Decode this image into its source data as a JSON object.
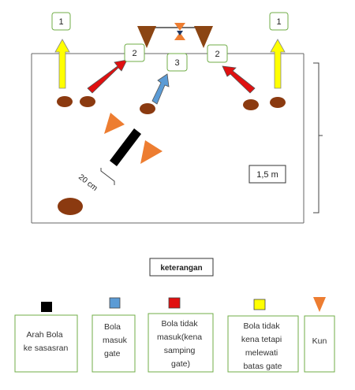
{
  "field": {
    "gate_labels": [
      "1",
      "2",
      "3",
      "2",
      "1"
    ],
    "distance_label": "20 cm",
    "scale_label": "1,5 m"
  },
  "legend": {
    "title": "keterangan",
    "items": [
      {
        "swatch": "#000000",
        "swatch_shape": "square",
        "lines": [
          "Arah Bola",
          "ke sasasran"
        ]
      },
      {
        "swatch": "#5b9bd5",
        "swatch_shape": "square",
        "lines": [
          "Bola",
          "masuk",
          "gate"
        ]
      },
      {
        "swatch": "#e01010",
        "swatch_shape": "square",
        "lines": [
          "Bola tidak",
          "masuk(kena",
          "samping",
          "gate)"
        ]
      },
      {
        "swatch": "#ffff00",
        "swatch_shape": "square",
        "lines": [
          "Bola tidak",
          "kena tetapi",
          "melewati",
          "batas gate"
        ]
      },
      {
        "swatch": "#ed7d31",
        "swatch_shape": "triangle",
        "lines": [
          "Kun"
        ]
      }
    ]
  },
  "colors": {
    "ball": "#8b3a10",
    "cone_brown": "#8b4513",
    "cone_orange": "#ed7d31",
    "arrow_yellow": "#ffff00",
    "arrow_red": "#e01010",
    "arrow_blue": "#5b9bd5",
    "box_border": "#70ad47",
    "line": "#555555"
  }
}
